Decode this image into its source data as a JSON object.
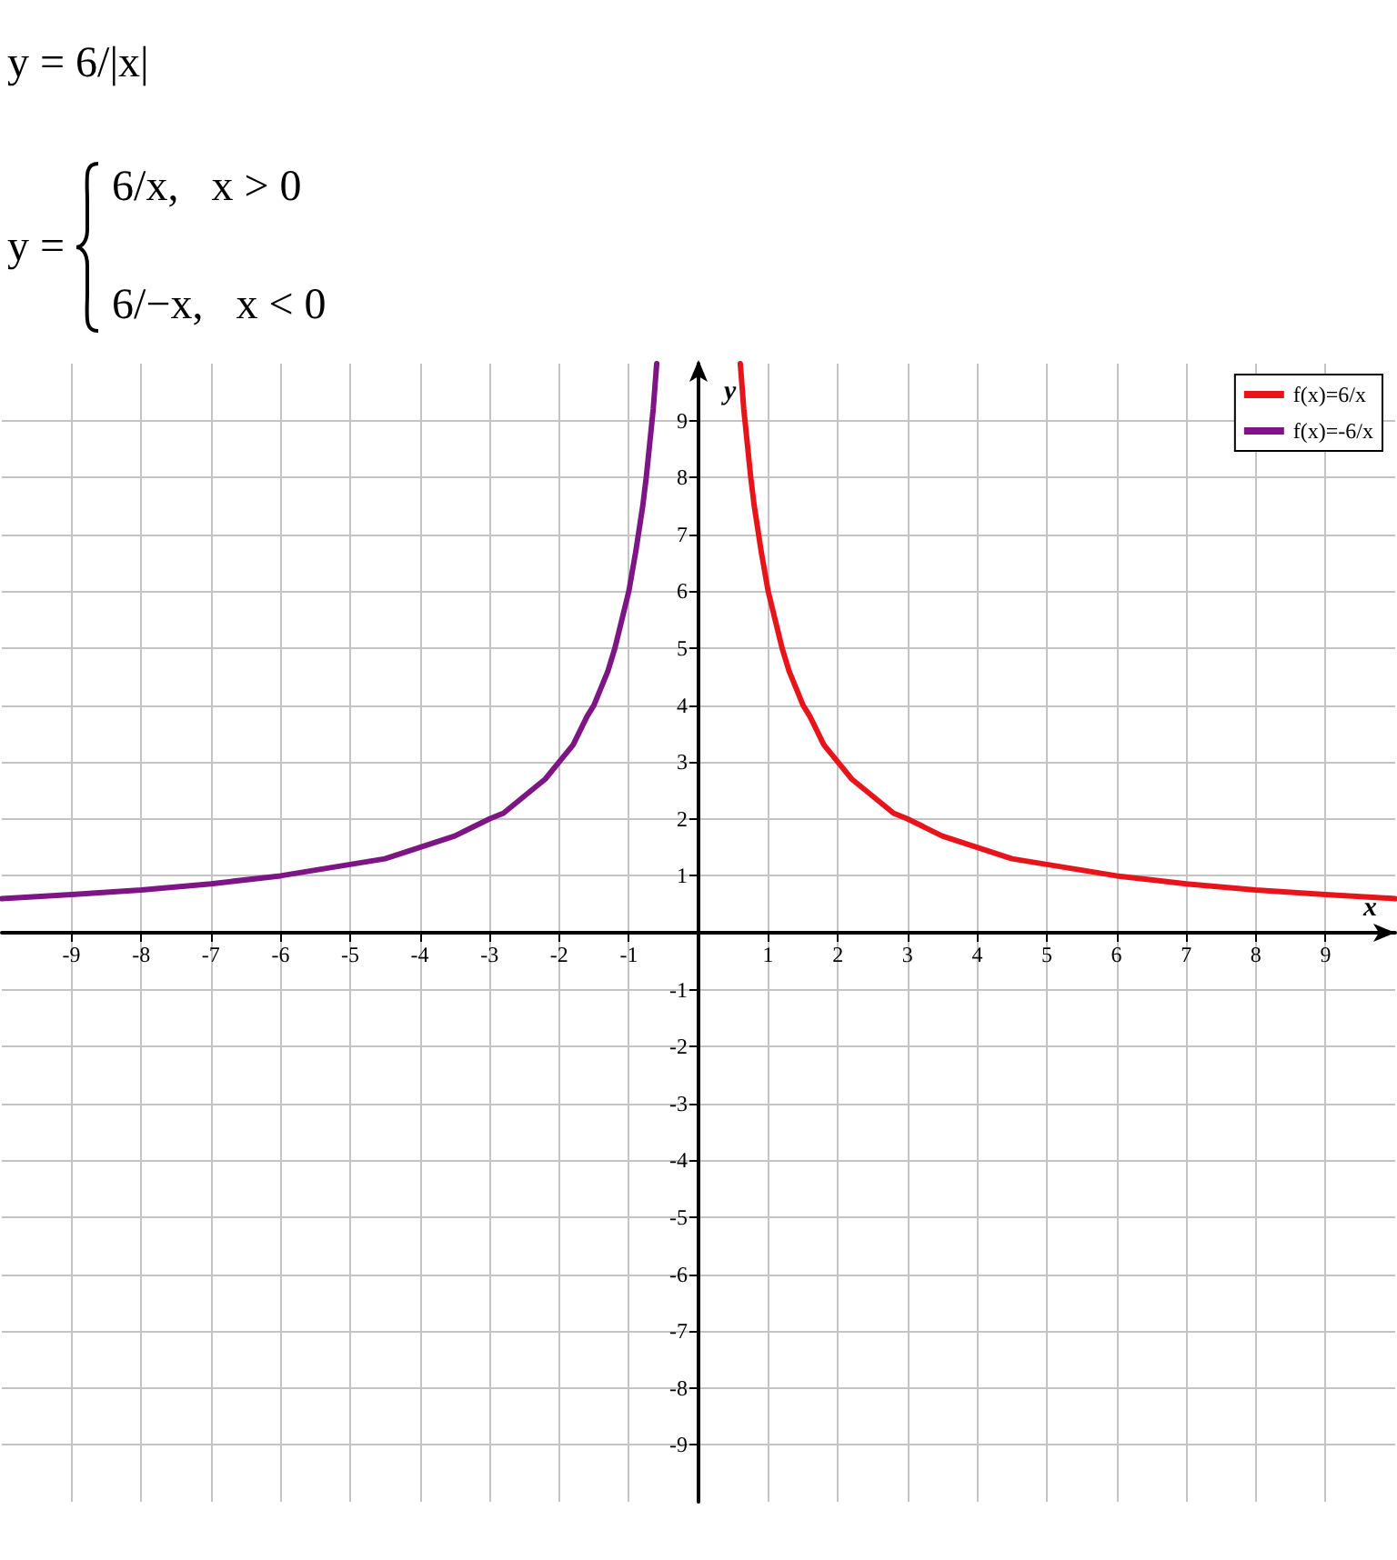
{
  "chart_data": {
    "type": "line",
    "title": "y = 6/|x|",
    "annotations": [
      "y =",
      "6/x,   x > 0",
      "6/−x,   x < 0"
    ],
    "xlabel": "x",
    "ylabel": "y",
    "xlim": [
      -10,
      10
    ],
    "ylim": [
      -10,
      10
    ],
    "xticks": [
      -9,
      -8,
      -7,
      -6,
      -5,
      -4,
      -3,
      -2,
      -1,
      1,
      2,
      3,
      4,
      5,
      6,
      7,
      8,
      9
    ],
    "yticks": [
      -9,
      -8,
      -7,
      -6,
      -5,
      -4,
      -3,
      -2,
      -1,
      1,
      2,
      3,
      4,
      5,
      6,
      7,
      8,
      9
    ],
    "grid": true,
    "legend": "top right",
    "marker": "none",
    "line_style": "solid",
    "series": [
      {
        "name": "f(x)=6/x",
        "color": "#e8141b",
        "x": [
          0.6,
          0.65,
          0.7,
          0.75,
          0.8,
          0.85,
          0.9,
          1,
          1.1,
          1.2,
          1.3,
          1.4,
          1.5,
          1.6,
          1.8,
          2,
          2.2,
          2.5,
          2.8,
          3,
          3.5,
          4,
          4.5,
          5,
          6,
          7,
          8,
          9,
          10
        ],
        "values": [
          10,
          9.2,
          8.6,
          8,
          7.5,
          7.1,
          6.7,
          6,
          5.5,
          5,
          4.6,
          4.3,
          4,
          3.8,
          3.3,
          3,
          2.7,
          2.4,
          2.1,
          2,
          1.7,
          1.5,
          1.3,
          1.2,
          1,
          0.86,
          0.75,
          0.67,
          0.6
        ]
      },
      {
        "name": "f(x)=-6/x",
        "color": "#7d1585",
        "x": [
          -10,
          -9,
          -8,
          -7,
          -6,
          -5,
          -4.5,
          -4,
          -3.5,
          -3,
          -2.8,
          -2.5,
          -2.2,
          -2,
          -1.8,
          -1.6,
          -1.5,
          -1.4,
          -1.3,
          -1.2,
          -1.1,
          -1,
          -0.9,
          -0.85,
          -0.8,
          -0.75,
          -0.7,
          -0.65,
          -0.6
        ],
        "values": [
          0.6,
          0.67,
          0.75,
          0.86,
          1,
          1.2,
          1.3,
          1.5,
          1.7,
          2,
          2.1,
          2.4,
          2.7,
          3,
          3.3,
          3.8,
          4,
          4.3,
          4.6,
          5,
          5.5,
          6,
          6.7,
          7.1,
          7.5,
          8,
          8.6,
          9.2,
          10
        ]
      }
    ]
  }
}
